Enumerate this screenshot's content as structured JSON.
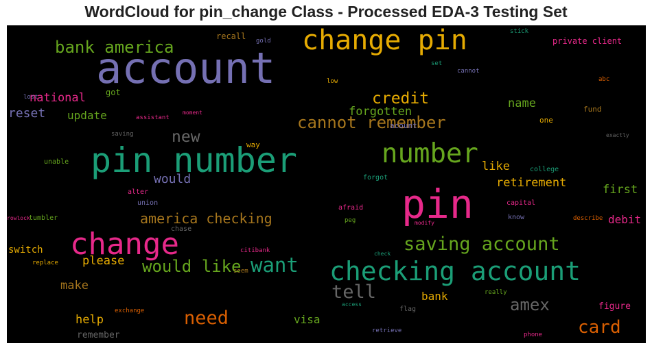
{
  "title": "WordCloud for pin_change Class - Processed EDA-3 Testing Set",
  "colors": {
    "purple": "#7570b3",
    "orange": "#e6ab02",
    "green": "#1b9e77",
    "magenta": "#e7298a",
    "olive": "#66a61e",
    "brown": "#a6761d",
    "grey": "#666666",
    "rust": "#d95f02"
  },
  "words": [
    {
      "text": "account",
      "color": "purple"
    },
    {
      "text": "change pin",
      "color": "orange"
    },
    {
      "text": "bank america",
      "color": "olive"
    },
    {
      "text": "pin number",
      "color": "green"
    },
    {
      "text": "pin",
      "color": "magenta"
    },
    {
      "text": "number",
      "color": "olive"
    },
    {
      "text": "change",
      "color": "magenta"
    },
    {
      "text": "checking account",
      "color": "green"
    },
    {
      "text": "saving account",
      "color": "olive"
    },
    {
      "text": "cannot remember",
      "color": "brown"
    },
    {
      "text": "want",
      "color": "green"
    },
    {
      "text": "would like",
      "color": "olive"
    },
    {
      "text": "tell",
      "color": "grey"
    },
    {
      "text": "need",
      "color": "rust"
    },
    {
      "text": "card",
      "color": "rust"
    },
    {
      "text": "amex",
      "color": "grey"
    },
    {
      "text": "credit",
      "color": "orange"
    },
    {
      "text": "new",
      "color": "grey"
    },
    {
      "text": "america checking",
      "color": "brown"
    },
    {
      "text": "retirement",
      "color": "orange"
    },
    {
      "text": "forgotten",
      "color": "olive"
    },
    {
      "text": "national",
      "color": "magenta"
    },
    {
      "text": "reset",
      "color": "purple"
    },
    {
      "text": "update",
      "color": "olive"
    },
    {
      "text": "name",
      "color": "olive"
    },
    {
      "text": "would",
      "color": "purple"
    },
    {
      "text": "please",
      "color": "orange"
    },
    {
      "text": "help",
      "color": "orange"
    },
    {
      "text": "make",
      "color": "brown"
    },
    {
      "text": "bank",
      "color": "orange"
    },
    {
      "text": "like",
      "color": "orange"
    },
    {
      "text": "first",
      "color": "olive"
    },
    {
      "text": "debit",
      "color": "magenta"
    },
    {
      "text": "visa",
      "color": "olive"
    },
    {
      "text": "switch",
      "color": "orange"
    },
    {
      "text": "remember",
      "color": "grey"
    },
    {
      "text": "figure",
      "color": "magenta"
    },
    {
      "text": "got",
      "color": "olive"
    },
    {
      "text": "recall",
      "color": "brown"
    },
    {
      "text": "gold",
      "color": "purple"
    },
    {
      "text": "lost",
      "color": "purple"
    },
    {
      "text": "assistant",
      "color": "magenta"
    },
    {
      "text": "moment",
      "color": "magenta"
    },
    {
      "text": "saving",
      "color": "grey"
    },
    {
      "text": "way",
      "color": "orange"
    },
    {
      "text": "unable",
      "color": "olive"
    },
    {
      "text": "alter",
      "color": "magenta"
    },
    {
      "text": "union",
      "color": "purple"
    },
    {
      "text": "tumbler",
      "color": "olive"
    },
    {
      "text": "chase",
      "color": "grey"
    },
    {
      "text": "rowlock",
      "color": "magenta"
    },
    {
      "text": "replace",
      "color": "orange"
    },
    {
      "text": "citibank",
      "color": "magenta"
    },
    {
      "text": "seem",
      "color": "brown"
    },
    {
      "text": "exchange",
      "color": "rust"
    },
    {
      "text": "stick",
      "color": "green"
    },
    {
      "text": "private client",
      "color": "magenta"
    },
    {
      "text": "cannot",
      "color": "purple"
    },
    {
      "text": "set",
      "color": "green"
    },
    {
      "text": "low",
      "color": "orange"
    },
    {
      "text": "abc",
      "color": "rust"
    },
    {
      "text": "acount",
      "color": "purple"
    },
    {
      "text": "fund",
      "color": "brown"
    },
    {
      "text": "one",
      "color": "orange"
    },
    {
      "text": "exactly",
      "color": "grey"
    },
    {
      "text": "college",
      "color": "green"
    },
    {
      "text": "forgot",
      "color": "green"
    },
    {
      "text": "capital",
      "color": "magenta"
    },
    {
      "text": "afraid",
      "color": "magenta"
    },
    {
      "text": "peg",
      "color": "olive"
    },
    {
      "text": "know",
      "color": "purple"
    },
    {
      "text": "describe",
      "color": "rust"
    },
    {
      "text": "modify",
      "color": "magenta"
    },
    {
      "text": "check",
      "color": "green"
    },
    {
      "text": "really",
      "color": "olive"
    },
    {
      "text": "access",
      "color": "green"
    },
    {
      "text": "flag",
      "color": "grey"
    },
    {
      "text": "retrieve",
      "color": "purple"
    },
    {
      "text": "phone",
      "color": "magenta"
    }
  ]
}
